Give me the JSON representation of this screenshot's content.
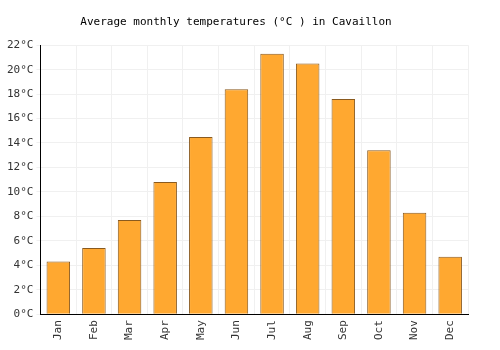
{
  "chart_data": {
    "type": "bar",
    "title": "Average monthly temperatures (°C ) in Cavaillon",
    "categories": [
      "Jan",
      "Feb",
      "Mar",
      "Apr",
      "May",
      "Jun",
      "Jul",
      "Aug",
      "Sep",
      "Oct",
      "Nov",
      "Dec"
    ],
    "values": [
      4.3,
      5.4,
      7.7,
      10.8,
      14.5,
      18.4,
      21.3,
      20.5,
      17.6,
      13.4,
      8.3,
      4.7
    ],
    "color": "#ffa830",
    "ylim": [
      0,
      22
    ],
    "yticks": [
      {
        "value": 0,
        "label": "0°C"
      },
      {
        "value": 2,
        "label": "2°C"
      },
      {
        "value": 4,
        "label": "4°C"
      },
      {
        "value": 6,
        "label": "6°C"
      },
      {
        "value": 8,
        "label": "8°C"
      },
      {
        "value": 10,
        "label": "10°C"
      },
      {
        "value": 12,
        "label": "12°C"
      },
      {
        "value": 14,
        "label": "14°C"
      },
      {
        "value": 16,
        "label": "16°C"
      },
      {
        "value": 18,
        "label": "18°C"
      },
      {
        "value": 20,
        "label": "20°C"
      },
      {
        "value": 22,
        "label": "22°C"
      }
    ],
    "grid": true
  }
}
